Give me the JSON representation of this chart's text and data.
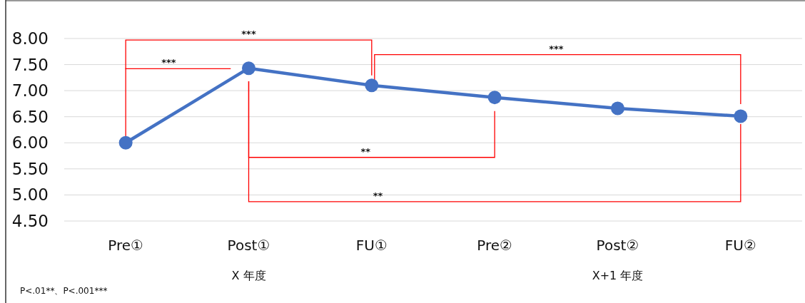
{
  "chart_data": {
    "type": "line",
    "categories": [
      "Pre①",
      "Post①",
      "FU①",
      "Pre②",
      "Post②",
      "FU②"
    ],
    "series": [
      {
        "color": "#4472c4",
        "values": [
          6.0,
          7.43,
          7.1,
          6.87,
          6.66,
          6.51
        ]
      }
    ],
    "ylim": [
      4.5,
      8
    ],
    "yticks": [
      {
        "value": 4.5,
        "label": "4.50"
      },
      {
        "value": 5,
        "label": "5.00"
      },
      {
        "value": 5.5,
        "label": "5.50"
      },
      {
        "value": 6,
        "label": "6.00"
      },
      {
        "value": 6.5,
        "label": "6.50"
      },
      {
        "value": 7,
        "label": "7.00"
      },
      {
        "value": 7.5,
        "label": "7.50"
      },
      {
        "value": 8,
        "label": "8.00"
      }
    ],
    "grid": "y",
    "marker": "circle",
    "line_style": "solid",
    "annotations": [
      "***",
      "***",
      "***",
      "**",
      "**",
      "X 年度",
      "X+1 年度",
      "P<.01**、P<.001***"
    ]
  }
}
